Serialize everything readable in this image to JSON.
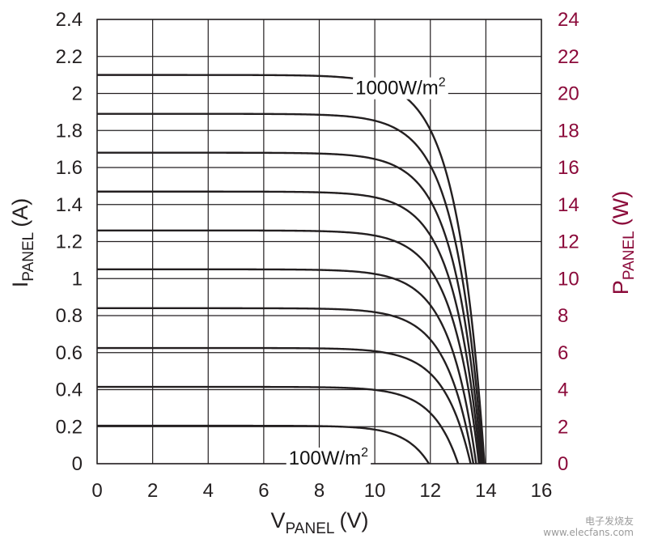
{
  "chart_data": {
    "type": "line",
    "xlabel": {
      "main": "V",
      "sub": "PANEL",
      "unit": "(V)"
    },
    "ylabel_left": {
      "main": "I",
      "sub": "PANEL",
      "unit": "(A)"
    },
    "ylabel_right": {
      "main": "P",
      "sub": "PANEL",
      "unit": "(W)"
    },
    "xlim": [
      0,
      16
    ],
    "ylim_left": [
      0,
      2.4
    ],
    "ylim_right": [
      0,
      24
    ],
    "x_ticks": [
      0,
      2,
      4,
      6,
      8,
      10,
      12,
      14,
      16
    ],
    "y_left_ticks": [
      "0",
      "0.2",
      "0.4",
      "0.6",
      "0.8",
      "1",
      "1.2",
      "1.4",
      "1.6",
      "1.8",
      "2",
      "2.2",
      "2.4"
    ],
    "y_right_ticks": [
      0,
      2,
      4,
      6,
      8,
      10,
      12,
      14,
      16,
      18,
      20,
      22,
      24
    ],
    "grid": true,
    "colors": {
      "current": "#231f20",
      "power": "#8b0a3a",
      "grid": "#231f20"
    },
    "annotations": [
      {
        "text_main": "1000W/m",
        "sup": "2",
        "at": [
          9.3,
          2.03
        ]
      },
      {
        "text_main": "100W/m",
        "sup": "2",
        "at": [
          6.9,
          0.03
        ]
      }
    ],
    "series": [
      {
        "isc": 2.1,
        "voc": 13.95,
        "pmax": 19.8,
        "vmp": 11.0
      },
      {
        "isc": 1.89,
        "voc": 13.9,
        "pmax": 17.8,
        "vmp": 11.0
      },
      {
        "isc": 1.68,
        "voc": 13.85,
        "pmax": 15.8,
        "vmp": 11.0
      },
      {
        "isc": 1.47,
        "voc": 13.8,
        "pmax": 13.8,
        "vmp": 10.9
      },
      {
        "isc": 1.26,
        "voc": 13.75,
        "pmax": 11.8,
        "vmp": 10.8
      },
      {
        "isc": 1.05,
        "voc": 13.65,
        "pmax": 9.8,
        "vmp": 10.8
      },
      {
        "isc": 0.84,
        "voc": 13.55,
        "pmax": 7.8,
        "vmp": 10.7
      },
      {
        "isc": 0.625,
        "voc": 13.45,
        "pmax": 5.7,
        "vmp": 10.6
      },
      {
        "isc": 0.415,
        "voc": 13.0,
        "pmax": 3.7,
        "vmp": 10.2
      },
      {
        "isc": 0.205,
        "voc": 11.95,
        "pmax": 1.7,
        "vmp": 9.3
      }
    ]
  },
  "watermark": {
    "line1": "电子发烧友",
    "line2": "www.elecfans.com"
  }
}
